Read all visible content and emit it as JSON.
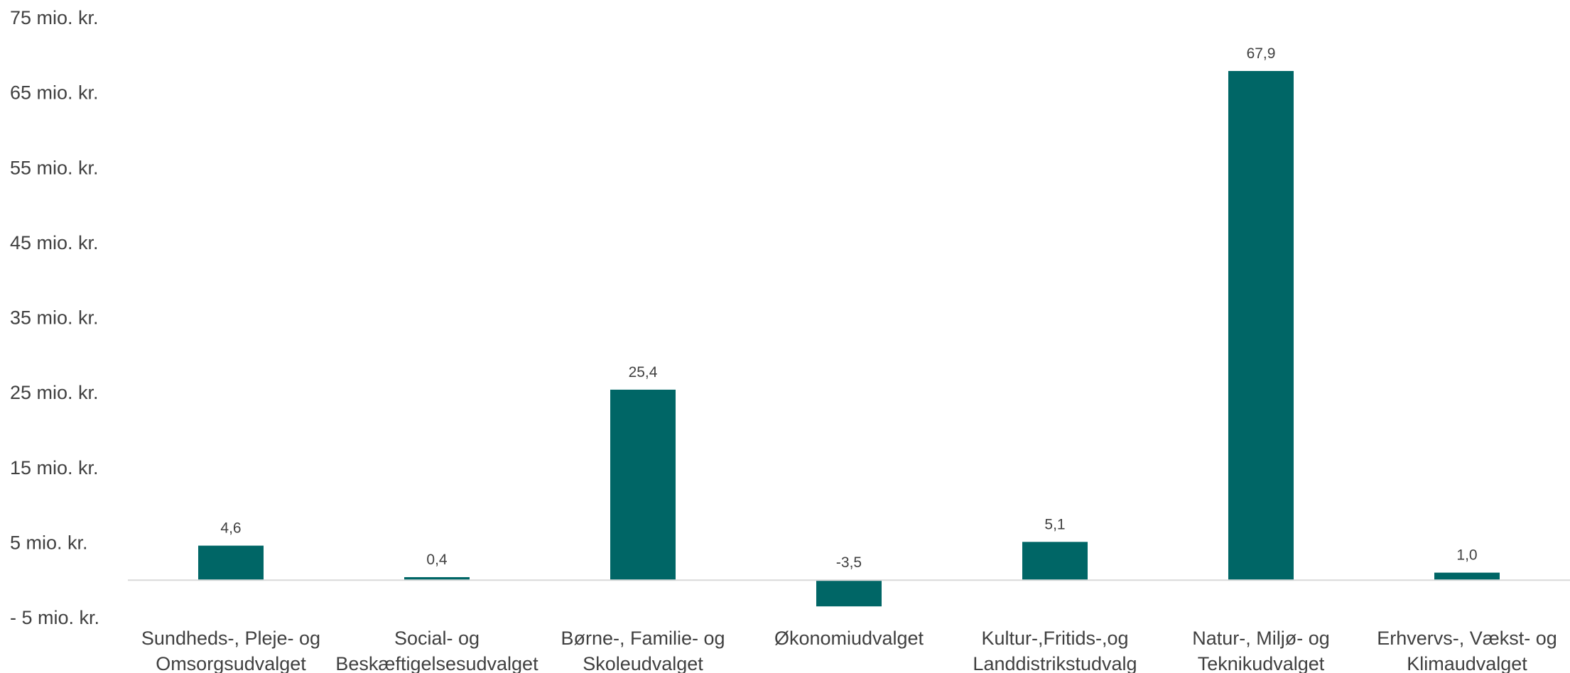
{
  "chart_data": {
    "type": "bar",
    "categories": [
      [
        "Sundheds-, Pleje- og",
        "Omsorgsudvalget"
      ],
      [
        "Social- og",
        "Beskæftigelsesudvalget"
      ],
      [
        "Børne-, Familie- og",
        "Skoleudvalget"
      ],
      [
        "Økonomiudvalget"
      ],
      [
        "Kultur-,Fritids-,og",
        "Landdistrikstudvalg"
      ],
      [
        "Natur-, Miljø- og",
        "Teknikudvalget"
      ],
      [
        "Erhvervs-, Vækst- og",
        "Klimaudvalget"
      ]
    ],
    "values": [
      4.6,
      0.4,
      25.4,
      -3.5,
      5.1,
      67.9,
      1.0
    ],
    "data_labels": [
      "4,6",
      "0,4",
      "25,4",
      "-3,5",
      "5,1",
      "67,9",
      "1,0"
    ],
    "ylim": [
      -5,
      75
    ],
    "yticks": [
      -5,
      5,
      15,
      25,
      35,
      45,
      55,
      65,
      75
    ],
    "ytick_labels": [
      "- 5 mio. kr.",
      "5 mio. kr.",
      "15 mio. kr.",
      "25 mio. kr.",
      "35 mio. kr.",
      "45 mio. kr.",
      "55 mio. kr.",
      "65 mio. kr.",
      "75 mio. kr."
    ],
    "title": "",
    "xlabel": "",
    "ylabel": "",
    "grid": false,
    "legend": "none",
    "colors": {
      "bar": "#006666",
      "axis_line": "#d9d9d9",
      "text": "#404040"
    }
  }
}
